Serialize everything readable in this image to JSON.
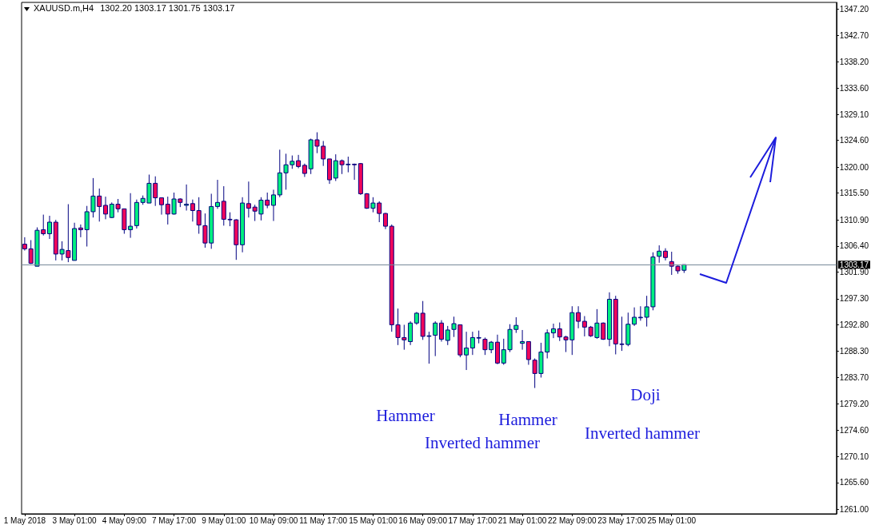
{
  "chart_data": {
    "type": "candlestick",
    "title": "XAUUSD.m,H4",
    "subtitle": "1302.20 1303.17 1301.75 1303.17",
    "categories": [
      "1 May 2018",
      null,
      null,
      null,
      null,
      null,
      null,
      null,
      "3 May 01:00",
      null,
      null,
      null,
      null,
      null,
      null,
      null,
      "4 May 09:00",
      null,
      null,
      null,
      null,
      null,
      null,
      null,
      "7 May 17:00",
      null,
      null,
      null,
      null,
      null,
      null,
      null,
      "9 May 01:00",
      null,
      null,
      null,
      null,
      null,
      null,
      null,
      "10 May 09:00",
      null,
      null,
      null,
      null,
      null,
      null,
      null,
      "11 May 17:00",
      null,
      null,
      null,
      null,
      null,
      null,
      null,
      "15 May 01:00",
      null,
      null,
      null,
      null,
      null,
      null,
      null,
      "16 May 09:00",
      null,
      null,
      null,
      null,
      null,
      null,
      null,
      "17 May 17:00",
      null,
      null,
      null,
      null,
      null,
      null,
      null,
      "21 May 01:00",
      null,
      null,
      null,
      null,
      null,
      null,
      null,
      "22 May 09:00",
      null,
      null,
      null,
      null,
      null,
      null,
      null,
      "23 May 17:00",
      null,
      null,
      null,
      null,
      null,
      null,
      null,
      "25 May 01:00",
      null,
      null,
      null,
      null,
      null,
      null,
      null,
      null,
      null,
      null,
      null,
      null,
      null,
      null,
      null,
      null,
      null,
      null,
      null,
      null,
      null,
      null,
      null,
      null,
      null,
      null
    ],
    "ohlc": [
      [
        1306.7,
        1307.9,
        1305.6,
        1305.9
      ],
      [
        1305.9,
        1307.4,
        1303.3,
        1303.4
      ],
      [
        1302.9,
        1309.6,
        1302.9,
        1309.1
      ],
      [
        1309.2,
        1311.8,
        1308.2,
        1308.5
      ],
      [
        1308.5,
        1311.6,
        1307.6,
        1310.5
      ],
      [
        1310.5,
        1310.9,
        1303.9,
        1305.0
      ],
      [
        1305.0,
        1307.2,
        1303.9,
        1305.8
      ],
      [
        1305.6,
        1313.6,
        1303.6,
        1304.4
      ],
      [
        1303.9,
        1310.4,
        1303.9,
        1309.4
      ],
      [
        1309.5,
        1310.1,
        1307.9,
        1309.2
      ],
      [
        1309.2,
        1313.3,
        1306.3,
        1312.3
      ],
      [
        1312.3,
        1318.1,
        1311.3,
        1315.0
      ],
      [
        1315.0,
        1316.3,
        1310.6,
        1313.2
      ],
      [
        1313.4,
        1314.9,
        1311.0,
        1311.9
      ],
      [
        1311.3,
        1313.9,
        1311.2,
        1313.6
      ],
      [
        1313.6,
        1314.5,
        1312.2,
        1312.8
      ],
      [
        1312.8,
        1312.8,
        1308.5,
        1309.2
      ],
      [
        1309.2,
        1315.5,
        1307.8,
        1309.8
      ],
      [
        1309.9,
        1314.4,
        1309.4,
        1313.9
      ],
      [
        1313.9,
        1315.1,
        1313.5,
        1314.6
      ],
      [
        1313.8,
        1318.7,
        1313.8,
        1317.2
      ],
      [
        1317.2,
        1318.4,
        1313.3,
        1314.7
      ],
      [
        1314.7,
        1314.7,
        1311.8,
        1313.5
      ],
      [
        1313.6,
        1314.9,
        1310.1,
        1311.9
      ],
      [
        1311.9,
        1315.6,
        1311.8,
        1314.5
      ],
      [
        1314.5,
        1314.6,
        1313.1,
        1313.9
      ],
      [
        1313.4,
        1317.0,
        1312.5,
        1313.6
      ],
      [
        1313.7,
        1314.4,
        1310.6,
        1312.5
      ],
      [
        1312.5,
        1314.8,
        1308.5,
        1310.0
      ],
      [
        1309.9,
        1312.0,
        1306.1,
        1306.9
      ],
      [
        1306.9,
        1315.4,
        1305.9,
        1313.2
      ],
      [
        1313.2,
        1317.8,
        1312.8,
        1313.9
      ],
      [
        1314.1,
        1316.7,
        1309.9,
        1311.0
      ],
      [
        1311.0,
        1312.2,
        1309.8,
        1310.9
      ],
      [
        1310.9,
        1311.0,
        1304.0,
        1306.6
      ],
      [
        1306.6,
        1314.8,
        1305.3,
        1313.8
      ],
      [
        1313.7,
        1317.5,
        1311.3,
        1312.9
      ],
      [
        1313.1,
        1313.5,
        1310.7,
        1312.4
      ],
      [
        1311.9,
        1314.8,
        1310.8,
        1314.3
      ],
      [
        1314.3,
        1315.6,
        1312.9,
        1313.4
      ],
      [
        1313.4,
        1316.1,
        1310.7,
        1315.2
      ],
      [
        1315.2,
        1323.0,
        1314.8,
        1319.0
      ],
      [
        1319.0,
        1322.3,
        1316.1,
        1320.4
      ],
      [
        1320.4,
        1322.0,
        1319.7,
        1321.0
      ],
      [
        1321.1,
        1322.1,
        1319.8,
        1320.1
      ],
      [
        1320.3,
        1320.6,
        1318.3,
        1318.9
      ],
      [
        1319.7,
        1324.9,
        1318.8,
        1324.7
      ],
      [
        1324.7,
        1326.0,
        1322.4,
        1323.6
      ],
      [
        1323.6,
        1324.5,
        1320.2,
        1321.4
      ],
      [
        1321.4,
        1321.4,
        1317.1,
        1317.8
      ],
      [
        1318.1,
        1322.2,
        1317.6,
        1321.1
      ],
      [
        1321.1,
        1321.3,
        1318.8,
        1320.4
      ],
      [
        1320.4,
        1321.8,
        1319.1,
        1320.5
      ],
      [
        1320.5,
        1320.6,
        1317.8,
        1320.4
      ],
      [
        1320.6,
        1320.7,
        1315.2,
        1315.4
      ],
      [
        1315.4,
        1315.5,
        1312.8,
        1312.9
      ],
      [
        1312.9,
        1314.8,
        1312.2,
        1313.8
      ],
      [
        1313.8,
        1314.1,
        1310.5,
        1312.0
      ],
      [
        1312.0,
        1312.1,
        1309.3,
        1309.8
      ],
      [
        1309.8,
        1310.1,
        1291.6,
        1292.8
      ],
      [
        1292.8,
        1295.6,
        1289.3,
        1290.6
      ],
      [
        1290.6,
        1292.8,
        1288.5,
        1290.2
      ],
      [
        1289.9,
        1293.4,
        1289.3,
        1293.1
      ],
      [
        1293.1,
        1295.0,
        1292.8,
        1294.8
      ],
      [
        1294.8,
        1296.9,
        1290.2,
        1290.8
      ],
      [
        1290.8,
        1291.6,
        1286.1,
        1290.9
      ],
      [
        1291.0,
        1293.4,
        1287.4,
        1293.1
      ],
      [
        1293.1,
        1293.6,
        1289.9,
        1290.3
      ],
      [
        1290.1,
        1292.6,
        1289.3,
        1291.9
      ],
      [
        1292.0,
        1294.2,
        1290.7,
        1293.0
      ],
      [
        1292.8,
        1292.8,
        1287.2,
        1287.6
      ],
      [
        1287.6,
        1291.6,
        1285.0,
        1288.8
      ],
      [
        1288.8,
        1291.6,
        1287.6,
        1290.6
      ],
      [
        1290.5,
        1291.8,
        1289.6,
        1290.6
      ],
      [
        1290.3,
        1290.6,
        1287.6,
        1288.5
      ],
      [
        1288.5,
        1290.0,
        1287.9,
        1289.8
      ],
      [
        1289.8,
        1291.1,
        1286.0,
        1286.2
      ],
      [
        1286.2,
        1290.4,
        1285.9,
        1288.5
      ],
      [
        1288.5,
        1292.9,
        1288.1,
        1292.0
      ],
      [
        1292.0,
        1294.1,
        1291.4,
        1292.7
      ],
      [
        1289.6,
        1291.9,
        1288.5,
        1289.9
      ],
      [
        1289.9,
        1289.9,
        1285.9,
        1286.8
      ],
      [
        1286.7,
        1287.0,
        1281.9,
        1284.4
      ],
      [
        1284.4,
        1289.7,
        1283.7,
        1288.1
      ],
      [
        1288.1,
        1292.0,
        1287.0,
        1291.4
      ],
      [
        1291.4,
        1293.0,
        1290.5,
        1292.1
      ],
      [
        1292.1,
        1293.2,
        1290.0,
        1290.7
      ],
      [
        1290.7,
        1290.9,
        1288.1,
        1290.2
      ],
      [
        1290.2,
        1296.0,
        1287.6,
        1294.9
      ],
      [
        1294.9,
        1296.0,
        1292.2,
        1293.4
      ],
      [
        1293.4,
        1294.3,
        1290.8,
        1292.4
      ],
      [
        1292.4,
        1292.6,
        1290.7,
        1290.9
      ],
      [
        1290.6,
        1295.5,
        1290.4,
        1293.1
      ],
      [
        1293.1,
        1293.2,
        1290.2,
        1290.3
      ],
      [
        1290.3,
        1298.4,
        1289.1,
        1297.2
      ],
      [
        1297.2,
        1297.8,
        1287.7,
        1289.5
      ],
      [
        1289.5,
        1294.2,
        1288.3,
        1289.4
      ],
      [
        1289.4,
        1294.9,
        1289.1,
        1292.9
      ],
      [
        1292.9,
        1295.8,
        1292.6,
        1294.1
      ],
      [
        1294.0,
        1296.0,
        1293.5,
        1294.1
      ],
      [
        1294.1,
        1297.8,
        1292.5,
        1295.9
      ],
      [
        1295.9,
        1305.3,
        1295.3,
        1304.5
      ],
      [
        1304.6,
        1306.5,
        1303.5,
        1305.5
      ],
      [
        1305.5,
        1306.0,
        1303.9,
        1304.4
      ],
      [
        1303.7,
        1305.4,
        1301.4,
        1302.9
      ],
      [
        1302.9,
        1303.0,
        1301.6,
        1302.1
      ],
      [
        1302.2,
        1303.17,
        1301.75,
        1303.17
      ],
      null,
      null,
      null,
      null,
      null,
      null,
      null,
      null,
      null,
      null,
      null,
      null,
      null,
      null,
      null,
      null,
      null,
      null,
      null,
      null,
      null,
      null,
      null,
      null
    ],
    "colors": [
      "#f0065a",
      "#f0065a",
      "#00f07f",
      "#f0065a",
      "#00f07f",
      "#f0065a",
      "#00f07f",
      "#f0065a",
      "#00f07f",
      "#f0065a",
      "#00f07f",
      "#00f07f",
      "#f0065a",
      "#f0065a",
      "#00f07f",
      "#f0065a",
      "#f0065a",
      "#00f07f",
      "#00f07f",
      "#00f07f",
      "#00f07f",
      "#f0065a",
      "#f0065a",
      "#f0065a",
      "#00f07f",
      "#f0065a",
      "#00f07f",
      "#f0065a",
      "#f0065a",
      "#f0065a",
      "#00f07f",
      "#00f07f",
      "#f0065a",
      "#f0065a",
      "#f0065a",
      "#00f07f",
      "#f0065a",
      "#f0065a",
      "#00f07f",
      "#f0065a",
      "#00f07f",
      "#00f07f",
      "#00f07f",
      "#00f07f",
      "#f0065a",
      "#f0065a",
      "#00f07f",
      "#f0065a",
      "#f0065a",
      "#f0065a",
      "#00f07f",
      "#f0065a",
      "#00f07f",
      "#f0065a",
      "#f0065a",
      "#f0065a",
      "#00f07f",
      "#f0065a",
      "#f0065a",
      "#f0065a",
      "#f0065a",
      "#f0065a",
      "#00f07f",
      "#00f07f",
      "#f0065a",
      "#00f07f",
      "#00f07f",
      "#f0065a",
      "#00f07f",
      "#00f07f",
      "#f0065a",
      "#00f07f",
      "#00f07f",
      "#00f07f",
      "#f0065a",
      "#00f07f",
      "#f0065a",
      "#00f07f",
      "#00f07f",
      "#00f07f",
      "#00f07f",
      "#f0065a",
      "#f0065a",
      "#00f07f",
      "#00f07f",
      "#00f07f",
      "#f0065a",
      "#f0065a",
      "#00f07f",
      "#f0065a",
      "#f0065a",
      "#f0065a",
      "#00f07f",
      "#f0065a",
      "#00f07f",
      "#f0065a",
      "#f0065a",
      "#00f07f",
      "#00f07f",
      "#00f07f",
      "#00f07f",
      "#00f07f",
      "#00f07f",
      "#f0065a",
      "#f0065a",
      "#f0065a",
      "#00f07f",
      null,
      null,
      null,
      null,
      null,
      null,
      null,
      null,
      null,
      null,
      null,
      null,
      null,
      null,
      null,
      null,
      null,
      null,
      null,
      null,
      null,
      null,
      null,
      null
    ],
    "ylim": [
      1260.2,
      1348.4
    ],
    "yticks": [
      {
        "value": 1261,
        "label": "1261.00"
      },
      {
        "value": 1265.6,
        "label": "1265.60"
      },
      {
        "value": 1270.1,
        "label": "1270.10"
      },
      {
        "value": 1274.6,
        "label": "1274.60"
      },
      {
        "value": 1279.2,
        "label": "1279.20"
      },
      {
        "value": 1283.7,
        "label": "1283.70"
      },
      {
        "value": 1288.3,
        "label": "1288.30"
      },
      {
        "value": 1292.8,
        "label": "1292.80"
      },
      {
        "value": 1297.3,
        "label": "1297.30"
      },
      {
        "value": 1301.9,
        "label": "1301.90"
      },
      {
        "value": 1306.4,
        "label": "1306.40"
      },
      {
        "value": 1310.9,
        "label": "1310.90"
      },
      {
        "value": 1315.5,
        "label": "1315.50"
      },
      {
        "value": 1320,
        "label": "1320.00"
      },
      {
        "value": 1324.6,
        "label": "1324.60"
      },
      {
        "value": 1329.1,
        "label": "1329.10"
      },
      {
        "value": 1333.6,
        "label": "1333.60"
      },
      {
        "value": 1338.2,
        "label": "1338.20"
      },
      {
        "value": 1342.7,
        "label": "1342.70"
      },
      {
        "value": 1347.2,
        "label": "1347.20"
      }
    ],
    "ref_lines": [
      {
        "axis": "y",
        "value": 1303.17,
        "label": "1303.17",
        "color": "#778899"
      }
    ],
    "annotations": [
      "Hammer",
      "Inverted hammer",
      "Hammer",
      "Doji",
      "Inverted hammer"
    ]
  }
}
